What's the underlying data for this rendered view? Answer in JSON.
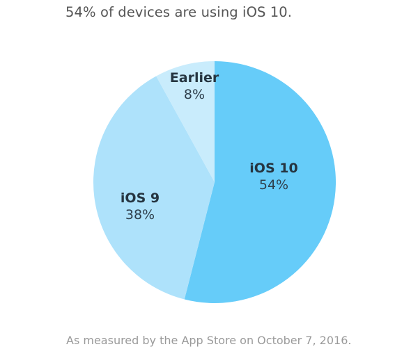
{
  "header": {
    "title": "54% of devices are using iOS 10."
  },
  "footer": {
    "note": "As measured by the App Store on October 7, 2016."
  },
  "colors": {
    "ios10": "#66ccf9",
    "ios9": "#aee2fb",
    "earlier": "#c9ecfc",
    "label_text": "#263541"
  },
  "chart_data": {
    "type": "pie",
    "title": "54% of devices are using iOS 10.",
    "subtitle": "As measured by the App Store on October 7, 2016.",
    "categories": [
      "iOS 10",
      "iOS 9",
      "Earlier"
    ],
    "values": [
      54,
      38,
      8
    ],
    "unit": "%",
    "start_angle": "12 o'clock, clockwise",
    "legend": "none (labels inside slices)",
    "labels": [
      {
        "name": "iOS 10",
        "value": "54%"
      },
      {
        "name": "iOS 9",
        "value": "38%"
      },
      {
        "name": "Earlier",
        "value": "8%"
      }
    ]
  }
}
